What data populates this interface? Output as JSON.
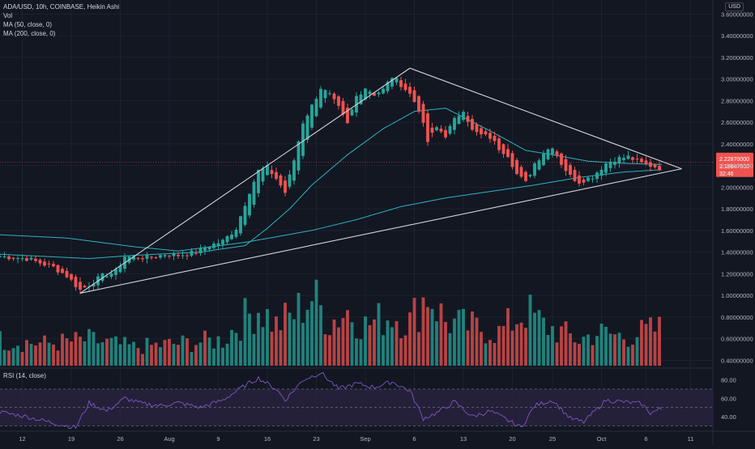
{
  "legend": {
    "title": "ADA/USD, 10h, COINBASE, Heikin Ashi",
    "vol": "Vol",
    "ma50": "MA (50, close, 0)",
    "ma200": "MA (200, close, 0)"
  },
  "rsi_legend": "RSI (14, close)",
  "currency": "USD",
  "price_badges": {
    "last": "2.22870000",
    "prev": "2.18647500",
    "countdown": "32:46"
  },
  "colors": {
    "background": "#131722",
    "up": "#26a69a",
    "down": "#ef5350",
    "ma": "#2bb3c0",
    "trendline": "#d1d4dc",
    "rsi_line": "#7e57c2",
    "rsi_band": "#2a2340",
    "price_line": "#ef5350"
  },
  "chart_data": [
    {
      "type": "candlestick",
      "title": "ADA/USD, 10h, COINBASE, Heikin Ashi",
      "ylim": [
        0.35,
        3.7
      ],
      "y_ticks": [
        "3.60000000",
        "3.40000000",
        "3.20000000",
        "3.00000000",
        "2.80000000",
        "2.60000000",
        "2.40000000",
        "2.20000000",
        "2.00000000",
        "1.80000000",
        "1.60000000",
        "1.40000000",
        "1.20000000",
        "1.00000000",
        "0.80000000",
        "0.60000000",
        "0.40000000"
      ],
      "y_tick_values": [
        3.6,
        3.4,
        3.2,
        3.0,
        2.8,
        2.6,
        2.4,
        2.2,
        2.0,
        1.8,
        1.6,
        1.4,
        1.2,
        1.0,
        0.8,
        0.6,
        0.4
      ],
      "x_tick_labels": [
        "12",
        "19",
        "26",
        "Aug",
        "9",
        "16",
        "23",
        "Sep",
        "6",
        "13",
        "20",
        "25",
        "Oct",
        "6",
        "11"
      ],
      "x_tick_index": [
        5,
        16,
        27,
        38,
        49,
        60,
        71,
        82,
        93,
        104,
        115,
        124,
        135,
        145,
        155
      ],
      "x_range": [
        0,
        160
      ],
      "price_anchors": [
        [
          0,
          1.36
        ],
        [
          3,
          1.35
        ],
        [
          6,
          1.34
        ],
        [
          9,
          1.3
        ],
        [
          12,
          1.26
        ],
        [
          15,
          1.18
        ],
        [
          18,
          1.05
        ],
        [
          20,
          1.1
        ],
        [
          23,
          1.18
        ],
        [
          26,
          1.22
        ],
        [
          28,
          1.36
        ],
        [
          31,
          1.35
        ],
        [
          34,
          1.35
        ],
        [
          37,
          1.38
        ],
        [
          40,
          1.37
        ],
        [
          44,
          1.4
        ],
        [
          47,
          1.46
        ],
        [
          50,
          1.5
        ],
        [
          53,
          1.62
        ],
        [
          56,
          1.96
        ],
        [
          58,
          2.15
        ],
        [
          60,
          2.18
        ],
        [
          62,
          2.08
        ],
        [
          64,
          1.95
        ],
        [
          66,
          2.25
        ],
        [
          68,
          2.6
        ],
        [
          70,
          2.75
        ],
        [
          72,
          2.92
        ],
        [
          74,
          2.85
        ],
        [
          76,
          2.73
        ],
        [
          78,
          2.58
        ],
        [
          80,
          2.84
        ],
        [
          82,
          2.92
        ],
        [
          84,
          2.86
        ],
        [
          86,
          2.9
        ],
        [
          88,
          3.02
        ],
        [
          90,
          2.95
        ],
        [
          92,
          2.86
        ],
        [
          94,
          2.72
        ],
        [
          96,
          2.42
        ],
        [
          98,
          2.55
        ],
        [
          100,
          2.48
        ],
        [
          102,
          2.62
        ],
        [
          104,
          2.72
        ],
        [
          106,
          2.52
        ],
        [
          108,
          2.48
        ],
        [
          110,
          2.46
        ],
        [
          112,
          2.36
        ],
        [
          114,
          2.3
        ],
        [
          116,
          2.12
        ],
        [
          118,
          2.04
        ],
        [
          120,
          2.22
        ],
        [
          122,
          2.32
        ],
        [
          124,
          2.38
        ],
        [
          126,
          2.22
        ],
        [
          128,
          2.1
        ],
        [
          130,
          2.05
        ],
        [
          133,
          2.1
        ],
        [
          136,
          2.22
        ],
        [
          138,
          2.26
        ],
        [
          141,
          2.28
        ],
        [
          144,
          2.22
        ],
        [
          146,
          2.2
        ],
        [
          148,
          2.18
        ]
      ],
      "ma50_anchors": [
        [
          0,
          1.38
        ],
        [
          20,
          1.34
        ],
        [
          30,
          1.37
        ],
        [
          45,
          1.4
        ],
        [
          55,
          1.46
        ],
        [
          60,
          1.62
        ],
        [
          65,
          1.8
        ],
        [
          70,
          2.02
        ],
        [
          78,
          2.3
        ],
        [
          86,
          2.54
        ],
        [
          93,
          2.7
        ],
        [
          100,
          2.73
        ],
        [
          110,
          2.52
        ],
        [
          118,
          2.34
        ],
        [
          124,
          2.3
        ],
        [
          132,
          2.24
        ],
        [
          140,
          2.22
        ],
        [
          148,
          2.21
        ]
      ],
      "ma200_anchors": [
        [
          0,
          1.56
        ],
        [
          15,
          1.53
        ],
        [
          30,
          1.45
        ],
        [
          40,
          1.41
        ],
        [
          55,
          1.49
        ],
        [
          70,
          1.6
        ],
        [
          80,
          1.7
        ],
        [
          90,
          1.82
        ],
        [
          100,
          1.9
        ],
        [
          110,
          1.96
        ],
        [
          120,
          2.02
        ],
        [
          130,
          2.09
        ],
        [
          140,
          2.14
        ],
        [
          148,
          2.16
        ]
      ],
      "trendlines": [
        {
          "from": [
            18,
            1.02
          ],
          "to": [
            92,
            3.1
          ]
        },
        {
          "from": [
            18,
            1.02
          ],
          "to": [
            153,
            2.17
          ]
        },
        {
          "from": [
            92,
            3.1
          ],
          "to": [
            153,
            2.17
          ]
        }
      ],
      "volume_ylim": [
        0,
        1.0
      ],
      "volume_anchors": [
        [
          0,
          0.35
        ],
        [
          10,
          0.3
        ],
        [
          20,
          0.35
        ],
        [
          30,
          0.25
        ],
        [
          40,
          0.3
        ],
        [
          50,
          0.35
        ],
        [
          54,
          0.6
        ],
        [
          58,
          0.8
        ],
        [
          62,
          0.55
        ],
        [
          66,
          0.7
        ],
        [
          70,
          0.95
        ],
        [
          74,
          0.6
        ],
        [
          78,
          0.75
        ],
        [
          82,
          0.55
        ],
        [
          88,
          0.7
        ],
        [
          92,
          0.6
        ],
        [
          96,
          1.0
        ],
        [
          100,
          0.6
        ],
        [
          104,
          0.55
        ],
        [
          108,
          0.5
        ],
        [
          112,
          0.45
        ],
        [
          118,
          0.75
        ],
        [
          122,
          0.55
        ],
        [
          126,
          0.45
        ],
        [
          130,
          0.35
        ],
        [
          134,
          0.45
        ],
        [
          140,
          0.4
        ],
        [
          148,
          0.5
        ]
      ],
      "last_price": 2.2287
    },
    {
      "type": "line",
      "title": "RSI (14, close)",
      "ylim": [
        25,
        92
      ],
      "y_ticks": [
        "80.00",
        "60.00",
        "40.00"
      ],
      "y_tick_values": [
        80,
        60,
        40
      ],
      "bands": [
        70,
        50,
        30
      ],
      "rsi_anchors": [
        [
          0,
          45
        ],
        [
          6,
          40
        ],
        [
          12,
          33
        ],
        [
          17,
          28
        ],
        [
          20,
          55
        ],
        [
          24,
          46
        ],
        [
          28,
          60
        ],
        [
          32,
          54
        ],
        [
          36,
          52
        ],
        [
          40,
          55
        ],
        [
          45,
          50
        ],
        [
          50,
          58
        ],
        [
          55,
          74
        ],
        [
          58,
          82
        ],
        [
          62,
          70
        ],
        [
          64,
          58
        ],
        [
          68,
          80
        ],
        [
          72,
          88
        ],
        [
          76,
          70
        ],
        [
          80,
          76
        ],
        [
          84,
          72
        ],
        [
          88,
          78
        ],
        [
          92,
          68
        ],
        [
          95,
          38
        ],
        [
          98,
          44
        ],
        [
          102,
          56
        ],
        [
          106,
          40
        ],
        [
          110,
          46
        ],
        [
          114,
          36
        ],
        [
          117,
          28
        ],
        [
          120,
          52
        ],
        [
          124,
          58
        ],
        [
          128,
          38
        ],
        [
          131,
          34
        ],
        [
          136,
          58
        ],
        [
          140,
          56
        ],
        [
          144,
          54
        ],
        [
          146,
          44
        ],
        [
          148,
          48
        ]
      ]
    }
  ]
}
